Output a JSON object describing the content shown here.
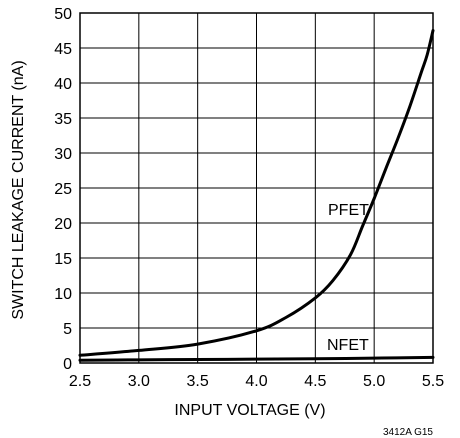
{
  "chart_data": {
    "type": "line",
    "xlabel": "INPUT VOLTAGE (V)",
    "ylabel": "SWITCH LEAKAGE CURRENT (nA)",
    "xlim": [
      2.5,
      5.5
    ],
    "ylim": [
      0,
      50
    ],
    "x_ticks": [
      2.5,
      3.0,
      3.5,
      4.0,
      4.5,
      5.0,
      5.5
    ],
    "x_tick_labels": [
      "2.5",
      "3.0",
      "3.5",
      "4.0",
      "4.5",
      "5.0",
      "5.5"
    ],
    "y_ticks": [
      0,
      5,
      10,
      15,
      20,
      25,
      30,
      35,
      40,
      45,
      50
    ],
    "y_tick_labels": [
      "0",
      "5",
      "10",
      "15",
      "20",
      "25",
      "30",
      "35",
      "40",
      "45",
      "50"
    ],
    "grid": true,
    "series": [
      {
        "name": "PFET",
        "x": [
          2.5,
          3.0,
          3.5,
          4.0,
          4.25,
          4.5,
          4.65,
          4.8,
          4.9,
          5.0,
          5.1,
          5.2,
          5.3,
          5.4,
          5.45,
          5.5
        ],
        "y": [
          1.1,
          1.8,
          2.7,
          4.6,
          6.5,
          9.3,
          11.8,
          15.5,
          19.5,
          23.5,
          27.8,
          32.0,
          36.5,
          41.5,
          44.0,
          47.5
        ]
      },
      {
        "name": "NFET",
        "x": [
          2.5,
          3.0,
          3.5,
          4.0,
          4.5,
          5.0,
          5.5
        ],
        "y": [
          0.4,
          0.45,
          0.5,
          0.55,
          0.6,
          0.7,
          0.8
        ]
      }
    ],
    "annotations": [
      "PFET",
      "NFET"
    ],
    "figure_code": "3412A G15"
  }
}
